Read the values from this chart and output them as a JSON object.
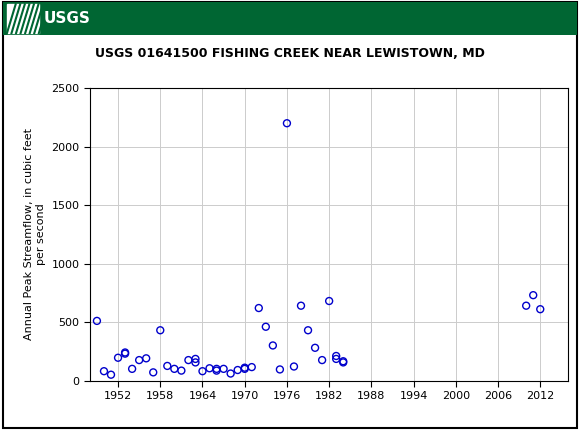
{
  "title": "USGS 01641500 FISHING CREEK NEAR LEWISTOWN, MD",
  "ylabel": "Annual Peak Streamflow, in cubic feet\nper second",
  "xlabel": "",
  "header_color": "#006633",
  "marker_color": "#0000CC",
  "marker_style": "o",
  "marker_size": 5,
  "xlim": [
    1948,
    2016
  ],
  "ylim": [
    0,
    2500
  ],
  "yticks": [
    0,
    500,
    1000,
    1500,
    2000,
    2500
  ],
  "xticks": [
    1952,
    1958,
    1964,
    1970,
    1976,
    1982,
    1988,
    1994,
    2000,
    2006,
    2012
  ],
  "grid_color": "#cccccc",
  "years": [
    1949,
    1950,
    1951,
    1952,
    1953,
    1953,
    1954,
    1955,
    1956,
    1957,
    1958,
    1959,
    1960,
    1961,
    1962,
    1963,
    1963,
    1964,
    1965,
    1966,
    1966,
    1967,
    1968,
    1969,
    1970,
    1970,
    1971,
    1972,
    1973,
    1974,
    1975,
    1976,
    1977,
    1978,
    1979,
    1980,
    1981,
    1982,
    1983,
    1983,
    1984,
    1984,
    2010,
    2011,
    2012
  ],
  "flows": [
    510,
    80,
    50,
    195,
    230,
    240,
    100,
    175,
    190,
    70,
    430,
    125,
    100,
    85,
    175,
    185,
    155,
    80,
    105,
    100,
    85,
    100,
    60,
    90,
    110,
    100,
    115,
    620,
    460,
    300,
    95,
    2200,
    120,
    640,
    430,
    280,
    175,
    680,
    210,
    185,
    155,
    165,
    640,
    730,
    610
  ],
  "border_color": "#000000",
  "fig_width": 5.8,
  "fig_height": 4.3,
  "dpi": 100
}
